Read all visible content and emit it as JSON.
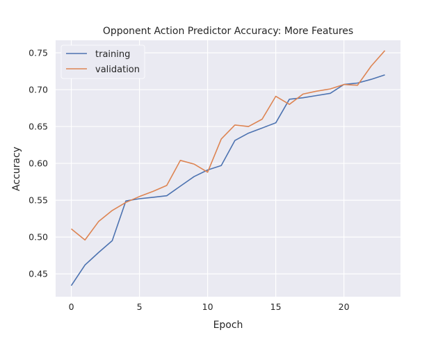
{
  "chart_data": {
    "type": "line",
    "title": "Opponent Action Predictor Accuracy: More Features",
    "xlabel": "Epoch",
    "ylabel": "Accuracy",
    "xlim": [
      -1.15,
      24.15
    ],
    "ylim": [
      0.419,
      0.767
    ],
    "xticks": [
      0,
      5,
      10,
      15,
      20
    ],
    "yticks": [
      0.45,
      0.5,
      0.55,
      0.6,
      0.65,
      0.7,
      0.75
    ],
    "xtick_labels": [
      "0",
      "5",
      "10",
      "15",
      "20"
    ],
    "ytick_labels": [
      "0.45",
      "0.50",
      "0.55",
      "0.60",
      "0.65",
      "0.70",
      "0.75"
    ],
    "grid": true,
    "legend_position": "top-left",
    "x": [
      0,
      1,
      2,
      3,
      4,
      5,
      6,
      7,
      8,
      9,
      10,
      11,
      12,
      13,
      14,
      15,
      16,
      17,
      18,
      19,
      20,
      21,
      22,
      23
    ],
    "series": [
      {
        "name": "training",
        "color": "#4c72b0",
        "values": [
          0.434,
          0.462,
          0.479,
          0.495,
          0.549,
          0.552,
          0.554,
          0.556,
          0.569,
          0.582,
          0.591,
          0.597,
          0.631,
          0.641,
          0.648,
          0.655,
          0.687,
          0.689,
          0.692,
          0.695,
          0.707,
          0.709,
          0.714,
          0.72
        ]
      },
      {
        "name": "validation",
        "color": "#dd8452",
        "values": [
          0.511,
          0.496,
          0.521,
          0.536,
          0.547,
          0.555,
          0.562,
          0.57,
          0.604,
          0.599,
          0.588,
          0.633,
          0.652,
          0.65,
          0.66,
          0.691,
          0.68,
          0.694,
          0.698,
          0.701,
          0.707,
          0.706,
          0.732,
          0.753
        ]
      }
    ]
  }
}
